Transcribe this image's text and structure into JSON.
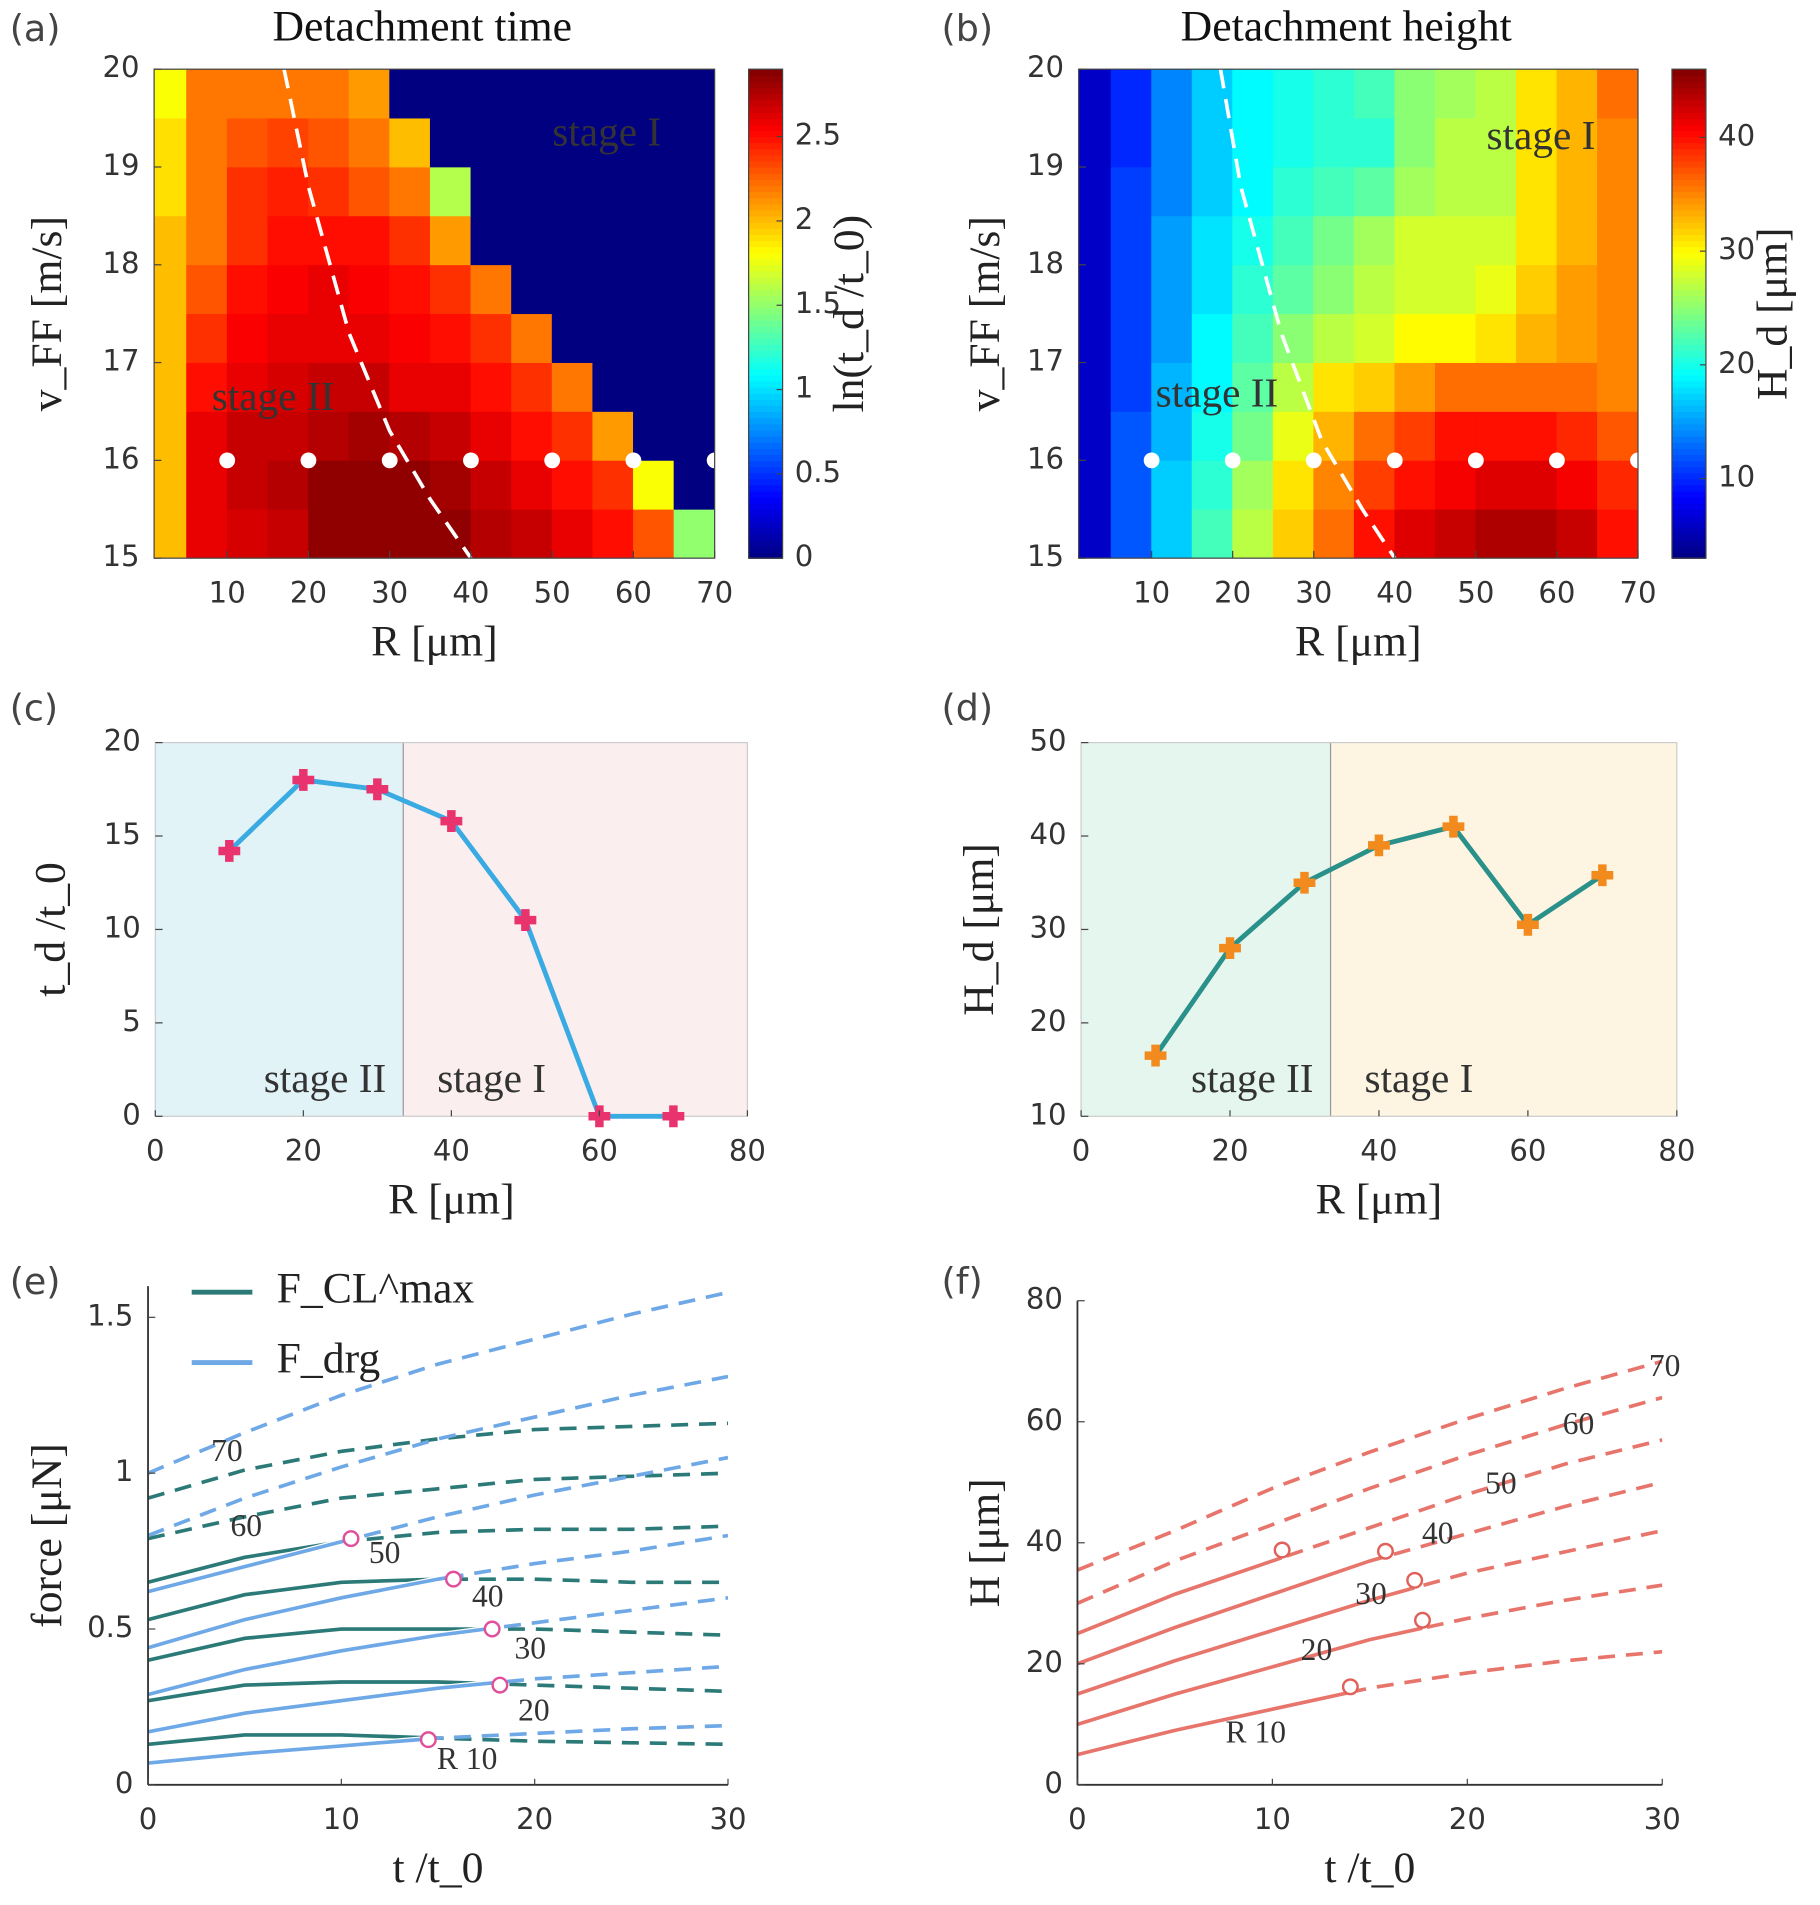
{
  "chart_data": [
    {
      "type": "heatmap",
      "panel": "(a)",
      "title": "Detachment time",
      "xlabel": "R [μm]",
      "ylabel": "v_FF [m/s]",
      "x": [
        2.5,
        7.5,
        12.5,
        17.5,
        22.5,
        27.5,
        32.5,
        37.5,
        42.5,
        47.5,
        52.5,
        57.5,
        62.5,
        67.5
      ],
      "y": [
        15.25,
        15.75,
        16.25,
        16.75,
        17.25,
        17.75,
        18.25,
        18.75,
        19.25,
        19.75
      ],
      "z": [
        [
          2.0,
          2.6,
          2.65,
          2.7,
          2.85,
          2.85,
          2.85,
          2.85,
          2.75,
          2.7,
          2.6,
          2.5,
          2.3,
          1.5
        ],
        [
          2.0,
          2.6,
          2.7,
          2.75,
          2.85,
          2.85,
          2.85,
          2.8,
          2.7,
          2.6,
          2.5,
          2.4,
          1.8,
          0
        ],
        [
          2.0,
          2.6,
          2.7,
          2.7,
          2.75,
          2.8,
          2.75,
          2.7,
          2.6,
          2.5,
          2.4,
          2.1,
          0,
          0
        ],
        [
          2.0,
          2.5,
          2.6,
          2.65,
          2.7,
          2.7,
          2.6,
          2.6,
          2.5,
          2.4,
          2.2,
          0,
          0,
          0
        ],
        [
          2.0,
          2.4,
          2.55,
          2.6,
          2.6,
          2.6,
          2.55,
          2.5,
          2.4,
          2.2,
          0,
          0,
          0,
          0
        ],
        [
          2.0,
          2.3,
          2.5,
          2.55,
          2.6,
          2.55,
          2.5,
          2.4,
          2.2,
          0,
          0,
          0,
          0,
          0
        ],
        [
          2.0,
          2.2,
          2.4,
          2.5,
          2.5,
          2.5,
          2.4,
          2.1,
          0,
          0,
          0,
          0,
          0,
          0
        ],
        [
          1.9,
          2.2,
          2.4,
          2.45,
          2.4,
          2.3,
          2.2,
          1.6,
          0,
          0,
          0,
          0,
          0,
          0
        ],
        [
          1.9,
          2.2,
          2.3,
          2.35,
          2.3,
          2.2,
          2.0,
          0,
          0,
          0,
          0,
          0,
          0,
          0
        ],
        [
          1.8,
          2.2,
          2.2,
          2.2,
          2.2,
          2.1,
          0,
          0,
          0,
          0,
          0,
          0,
          0,
          0
        ]
      ],
      "zlim": [
        0,
        2.9
      ],
      "colorbar": {
        "label": "ln(t_d /t_0)",
        "ticks": [
          0,
          0.5,
          1,
          1.5,
          2,
          2.5
        ]
      },
      "xlim": [
        1,
        70
      ],
      "xticks": [
        10,
        20,
        30,
        40,
        50,
        60,
        70
      ],
      "ylim": [
        15,
        20
      ],
      "yticks": [
        15,
        16,
        17,
        18,
        19,
        20
      ],
      "points": {
        "x": [
          10,
          20,
          30,
          40,
          50,
          60,
          70
        ],
        "y": [
          16,
          16,
          16,
          16,
          16,
          16,
          16
        ]
      },
      "boundary": {
        "x": [
          17,
          20,
          25,
          30,
          35,
          40
        ],
        "y": [
          20,
          18.8,
          17.3,
          16.3,
          15.6,
          15
        ]
      },
      "annotations": [
        "stage I",
        "stage II"
      ],
      "annotation_color": "#ffffff"
    },
    {
      "type": "heatmap",
      "panel": "(b)",
      "title": "Detachment height",
      "xlabel": "R [μm]",
      "ylabel": "v_FF [m/s]",
      "x": [
        2.5,
        7.5,
        12.5,
        17.5,
        22.5,
        27.5,
        32.5,
        37.5,
        42.5,
        47.5,
        52.5,
        57.5,
        62.5,
        67.5
      ],
      "y": [
        15.25,
        15.75,
        16.25,
        16.75,
        17.25,
        17.75,
        18.25,
        18.75,
        19.25,
        19.75
      ],
      "z": [
        [
          6,
          12,
          17,
          22,
          27,
          32,
          36,
          40,
          42,
          43,
          44,
          44,
          43,
          40
        ],
        [
          6,
          12,
          17,
          21,
          26,
          31,
          35,
          38,
          40,
          41,
          42,
          42,
          41,
          39
        ],
        [
          6,
          12,
          16,
          20,
          24,
          29,
          33,
          36,
          38,
          40,
          40,
          40,
          39,
          37
        ],
        [
          6,
          11,
          16,
          19,
          23,
          27,
          31,
          32,
          34,
          36,
          36,
          36,
          36,
          35
        ],
        [
          6,
          11,
          15,
          19,
          22,
          25,
          27,
          28,
          30,
          30,
          31,
          33,
          34,
          35
        ],
        [
          6,
          11,
          15,
          18,
          21,
          23,
          25,
          27,
          28,
          28,
          29,
          32,
          34,
          35
        ],
        [
          6,
          11,
          15,
          18,
          20,
          22,
          24,
          26,
          28,
          28,
          28,
          31,
          33,
          35
        ],
        [
          6,
          11,
          14,
          17,
          19,
          21,
          22,
          23,
          26,
          27,
          27,
          31,
          33,
          35
        ],
        [
          6,
          10,
          14,
          17,
          19,
          20,
          21,
          21,
          25,
          27,
          27,
          31,
          33,
          35
        ],
        [
          6,
          10,
          14,
          17,
          19,
          20,
          21,
          22,
          25,
          26,
          27,
          31,
          33,
          36
        ]
      ],
      "zlim": [
        3,
        46
      ],
      "colorbar": {
        "label": "H_d [μm]",
        "ticks": [
          10,
          20,
          30,
          40
        ]
      },
      "xlim": [
        1,
        70
      ],
      "xticks": [
        10,
        20,
        30,
        40,
        50,
        60,
        70
      ],
      "ylim": [
        15,
        20
      ],
      "yticks": [
        15,
        16,
        17,
        18,
        19,
        20
      ],
      "points": {
        "x": [
          10,
          20,
          30,
          40,
          50,
          60,
          70
        ],
        "y": [
          16,
          16,
          16,
          16,
          16,
          16,
          16
        ]
      },
      "boundary": {
        "x": [
          18.5,
          21,
          26,
          31,
          36,
          40
        ],
        "y": [
          20,
          18.8,
          17.3,
          16.2,
          15.5,
          15
        ]
      },
      "annotations": [
        "stage I",
        "stage II"
      ],
      "annotation_color": "#111111"
    },
    {
      "type": "line",
      "panel": "(c)",
      "xlabel": "R [μm]",
      "ylabel": "t_d /t_0",
      "x": [
        10,
        20,
        30,
        40,
        50,
        60,
        70
      ],
      "values": [
        14.2,
        18,
        17.5,
        15.8,
        10.5,
        0,
        0
      ],
      "color": "#3aaae2",
      "marker_color": "#e8336e",
      "regions": [
        {
          "name": "stage II",
          "x": [
            0,
            33.5
          ],
          "color": "#e2f3f8"
        },
        {
          "name": "stage I",
          "x": [
            33.5,
            80
          ],
          "color": "#fbeeee"
        }
      ],
      "xlim": [
        0,
        80
      ],
      "xticks": [
        0,
        20,
        40,
        60,
        80
      ],
      "ylim": [
        0,
        20
      ],
      "yticks": [
        0,
        5,
        10,
        15,
        20
      ]
    },
    {
      "type": "line",
      "panel": "(d)",
      "xlabel": "R [μm]",
      "ylabel": "H_d [μm]",
      "x": [
        10,
        20,
        30,
        40,
        50,
        60,
        70
      ],
      "values": [
        16.5,
        28,
        35,
        39,
        41,
        30.5,
        35.8
      ],
      "color": "#2a918a",
      "marker_color": "#f28a1e",
      "regions": [
        {
          "name": "stage II",
          "x": [
            0,
            33.5
          ],
          "color": "#e5f6ee"
        },
        {
          "name": "stage I",
          "x": [
            33.5,
            80
          ],
          "color": "#fdf5e2"
        }
      ],
      "xlim": [
        0,
        80
      ],
      "xticks": [
        0,
        20,
        40,
        60,
        80
      ],
      "ylim": [
        10,
        50
      ],
      "yticks": [
        10,
        20,
        30,
        40,
        50
      ]
    },
    {
      "type": "line",
      "panel": "(e)",
      "xlabel": "t /t_0",
      "ylabel": "force [μN]",
      "x": [
        0,
        5,
        10,
        15,
        20,
        25,
        30
      ],
      "series": [
        {
          "name": "F_CL^max",
          "color": "#2b7a78",
          "values": [
            [
              0.13,
              0.16,
              0.16,
              0.15,
              0.14,
              0.135,
              0.13
            ],
            [
              0.27,
              0.32,
              0.33,
              0.33,
              0.32,
              0.31,
              0.3
            ],
            [
              0.4,
              0.47,
              0.5,
              0.5,
              0.5,
              0.49,
              0.48
            ],
            [
              0.53,
              0.61,
              0.65,
              0.66,
              0.66,
              0.65,
              0.65
            ],
            [
              0.65,
              0.73,
              0.78,
              0.81,
              0.82,
              0.82,
              0.83
            ],
            [
              0.79,
              0.86,
              0.92,
              0.95,
              0.98,
              0.99,
              1.0
            ],
            [
              0.92,
              1.01,
              1.07,
              1.11,
              1.14,
              1.15,
              1.16
            ]
          ]
        },
        {
          "name": "F_drg",
          "color": "#6fa8e6",
          "values": [
            [
              0.07,
              0.1,
              0.125,
              0.15,
              0.165,
              0.18,
              0.19
            ],
            [
              0.17,
              0.23,
              0.27,
              0.31,
              0.34,
              0.36,
              0.38
            ],
            [
              0.29,
              0.37,
              0.43,
              0.48,
              0.52,
              0.56,
              0.6
            ],
            [
              0.44,
              0.53,
              0.6,
              0.66,
              0.71,
              0.75,
              0.8
            ],
            [
              0.62,
              0.7,
              0.78,
              0.86,
              0.93,
              0.99,
              1.05
            ],
            [
              0.8,
              0.92,
              1.02,
              1.11,
              1.18,
              1.25,
              1.31
            ],
            [
              1.0,
              1.13,
              1.25,
              1.35,
              1.43,
              1.51,
              1.58
            ]
          ]
        }
      ],
      "curve_labels": [
        "R 10",
        "20",
        "30",
        "40",
        "50",
        "60",
        "70"
      ],
      "detach": {
        "x": [
          14.5,
          18.2,
          17.8,
          15.8,
          10.5,
          null,
          null
        ],
        "y": [
          0.145,
          0.32,
          0.5,
          0.66,
          0.79,
          null,
          null
        ]
      },
      "detach_color": "#e0509a",
      "label_color": "#1b2a5e",
      "legend": "upper left",
      "xlim": [
        0,
        30
      ],
      "xticks": [
        0,
        10,
        20,
        30
      ],
      "ylim": [
        0,
        1.6
      ],
      "yticks": [
        0,
        0.5,
        1,
        1.5
      ]
    },
    {
      "type": "line",
      "panel": "(f)",
      "xlabel": "t /t_0",
      "ylabel": "H [μm]",
      "x": [
        0,
        5,
        10,
        15,
        20,
        25,
        30
      ],
      "series": [
        {
          "color": "#e8756c",
          "values": [
            [
              5,
              9,
              12.5,
              16,
              18.5,
              20.5,
              22
            ],
            [
              10,
              15,
              19.5,
              24,
              27.5,
              30.5,
              33
            ],
            [
              15,
              20.5,
              25.5,
              30.5,
              35,
              38.5,
              42
            ],
            [
              20,
              26,
              31.5,
              37,
              41.5,
              46,
              50
            ],
            [
              25,
              31.5,
              37,
              42.5,
              48,
              53,
              57
            ],
            [
              30,
              37,
              43,
              49,
              54.5,
              59.5,
              64
            ],
            [
              35.5,
              42,
              49,
              55,
              60.5,
              65.5,
              70
            ]
          ]
        }
      ],
      "curve_labels": [
        "R 10",
        "20",
        "30",
        "40",
        "50",
        "60",
        "70"
      ],
      "detach": {
        "x": [
          14,
          17.7,
          17.3,
          15.8,
          10.5,
          null,
          null
        ],
        "y": [
          16.2,
          27.2,
          33.8,
          38.6,
          38.8,
          null,
          null
        ]
      },
      "detach_color": "#e0605a",
      "label_color": "#1b2a5e",
      "xlim": [
        0,
        30
      ],
      "xticks": [
        0,
        10,
        20,
        30
      ],
      "ylim": [
        0,
        80
      ],
      "yticks": [
        0,
        20,
        40,
        60,
        80
      ]
    }
  ]
}
